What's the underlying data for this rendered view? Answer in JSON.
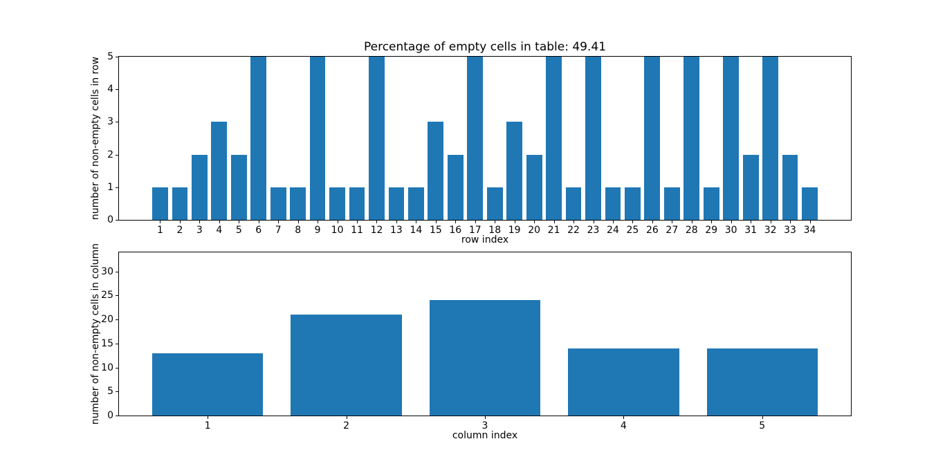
{
  "figure": {
    "title": "Percentage of empty cells in table: 49.41",
    "background_color": "#ffffff",
    "text_color": "#000000"
  },
  "chart_data": [
    {
      "type": "bar",
      "title": "Percentage of empty cells in table: 49.41",
      "xlabel": "row index",
      "ylabel": "number of non-empty cells in row",
      "categories": [
        1,
        2,
        3,
        4,
        5,
        6,
        7,
        8,
        9,
        10,
        11,
        12,
        13,
        14,
        15,
        16,
        17,
        18,
        19,
        20,
        21,
        22,
        23,
        24,
        25,
        26,
        27,
        28,
        29,
        30,
        31,
        32,
        33,
        34
      ],
      "values": [
        1,
        1,
        2,
        3,
        2,
        5,
        1,
        1,
        5,
        1,
        1,
        5,
        1,
        1,
        3,
        2,
        5,
        1,
        3,
        2,
        5,
        1,
        5,
        1,
        1,
        5,
        1,
        5,
        1,
        5,
        2,
        5,
        2,
        1
      ],
      "ylim": [
        0,
        5
      ],
      "yticks": [
        0,
        1,
        2,
        3,
        4,
        5
      ],
      "xlim": [
        -1.09,
        36.09
      ],
      "bar_width": 0.8,
      "bar_color": "#1f77b4",
      "grid": false,
      "legend": null
    },
    {
      "type": "bar",
      "title": "",
      "xlabel": "column index",
      "ylabel": "number of non-empty cells in column",
      "categories": [
        1,
        2,
        3,
        4,
        5
      ],
      "values": [
        13,
        21,
        24,
        14,
        14
      ],
      "ylim": [
        0,
        34
      ],
      "yticks": [
        0,
        5,
        10,
        15,
        20,
        25,
        30
      ],
      "xlim": [
        0.36,
        5.64
      ],
      "bar_width": 0.8,
      "bar_color": "#1f77b4",
      "grid": false,
      "legend": null
    }
  ]
}
